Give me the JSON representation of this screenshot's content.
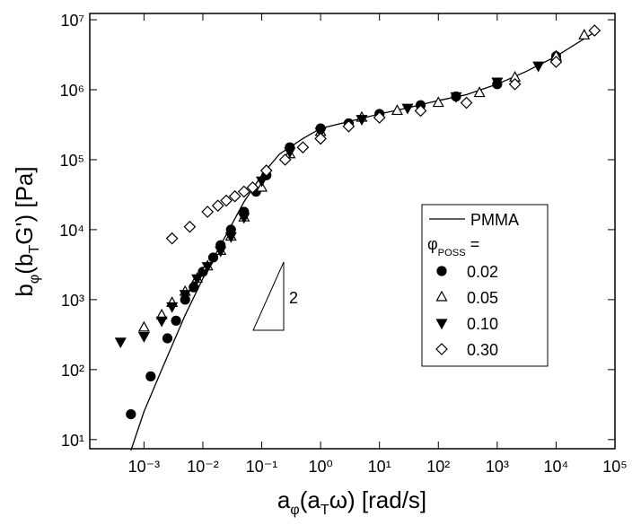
{
  "chart_data": {
    "type": "scatter",
    "xlabel": [
      "a",
      "φ",
      "(a",
      "T",
      "ω) [rad/s]"
    ],
    "ylabel": [
      "b",
      "φ",
      "(b",
      "T",
      "G') [Pa]"
    ],
    "log_x": true,
    "log_y": true,
    "xlim": [
      0.00012,
      100000
    ],
    "ylim": [
      7.4,
      12300000
    ],
    "xticks": [
      {
        "value": 0.001,
        "label": "10⁻³"
      },
      {
        "value": 0.01,
        "label": "10⁻²"
      },
      {
        "value": 0.1,
        "label": "10⁻¹"
      },
      {
        "value": 1,
        "label": "10⁰"
      },
      {
        "value": 10,
        "label": "10¹"
      },
      {
        "value": 100,
        "label": "10²"
      },
      {
        "value": 1000,
        "label": "10³"
      },
      {
        "value": 10000,
        "label": "10⁴"
      },
      {
        "value": 100000,
        "label": "10⁵"
      }
    ],
    "yticks": [
      {
        "value": 10,
        "label": "10¹"
      },
      {
        "value": 100,
        "label": "10²"
      },
      {
        "value": 1000,
        "label": "10³"
      },
      {
        "value": 10000,
        "label": "10⁴"
      },
      {
        "value": 100000,
        "label": "10⁵"
      },
      {
        "value": 1000000,
        "label": "10⁶"
      },
      {
        "value": 10000000,
        "label": "10⁷"
      }
    ],
    "legend_title": [
      "φ",
      "POSS",
      " ="
    ],
    "slope_label": "2",
    "series": [
      {
        "name": "PMMA",
        "marker": "line",
        "color": "#000000",
        "x": [
          0.0006,
          0.001,
          0.002,
          0.005,
          0.01,
          0.02,
          0.05,
          0.1,
          0.2,
          0.5,
          1,
          3,
          10,
          30,
          100,
          300,
          1000,
          3000,
          10000,
          50000
        ],
        "values": [
          7,
          25,
          100,
          600,
          2000,
          6000,
          25000,
          60000,
          120000,
          200000,
          280000,
          350000,
          450000,
          550000,
          700000,
          850000,
          1200000,
          1800000,
          3000000,
          7000000
        ]
      },
      {
        "name": "0.02",
        "marker": "circle",
        "filled": true,
        "color": "#000000",
        "x": [
          0.0006,
          0.0013,
          0.0025,
          0.0035,
          0.005,
          0.007,
          0.01,
          0.015,
          0.02,
          0.03,
          0.05,
          0.08,
          0.12,
          0.3,
          1,
          3,
          10,
          50,
          200,
          1000,
          10000
        ],
        "values": [
          23,
          80,
          280,
          500,
          1000,
          1500,
          2500,
          4000,
          6000,
          10000,
          18000,
          35000,
          60000,
          150000,
          280000,
          330000,
          450000,
          600000,
          800000,
          1200000,
          3000000
        ]
      },
      {
        "name": "0.05",
        "marker": "triangle-up",
        "filled": false,
        "color": "#000000",
        "x": [
          0.001,
          0.002,
          0.003,
          0.005,
          0.008,
          0.012,
          0.02,
          0.03,
          0.05,
          0.1,
          0.3,
          1,
          5,
          20,
          100,
          500,
          2000,
          10000,
          30000
        ],
        "values": [
          400,
          600,
          900,
          1300,
          2000,
          3000,
          5000,
          8000,
          15000,
          40000,
          120000,
          250000,
          400000,
          500000,
          650000,
          900000,
          1500000,
          3000000,
          6000000
        ]
      },
      {
        "name": "0.10",
        "marker": "triangle-down",
        "filled": true,
        "color": "#000000",
        "x": [
          0.0004,
          0.001,
          0.002,
          0.003,
          0.005,
          0.008,
          0.012,
          0.02,
          0.03,
          0.05,
          0.1,
          0.3,
          1,
          5,
          30,
          200,
          1000,
          5000
        ],
        "values": [
          250,
          300,
          500,
          800,
          1200,
          2000,
          3000,
          5000,
          8000,
          15000,
          50000,
          130000,
          250000,
          380000,
          550000,
          800000,
          1300000,
          2200000
        ]
      },
      {
        "name": "0.30",
        "marker": "diamond",
        "filled": false,
        "color": "#000000",
        "x": [
          0.003,
          0.006,
          0.012,
          0.018,
          0.025,
          0.035,
          0.05,
          0.07,
          0.12,
          0.25,
          0.5,
          1,
          3,
          10,
          50,
          300,
          2000,
          10000,
          45000
        ],
        "values": [
          7500,
          11000,
          18000,
          22000,
          26000,
          30000,
          35000,
          40000,
          70000,
          100000,
          150000,
          200000,
          300000,
          400000,
          500000,
          650000,
          1200000,
          2500000,
          7000000
        ]
      }
    ]
  }
}
